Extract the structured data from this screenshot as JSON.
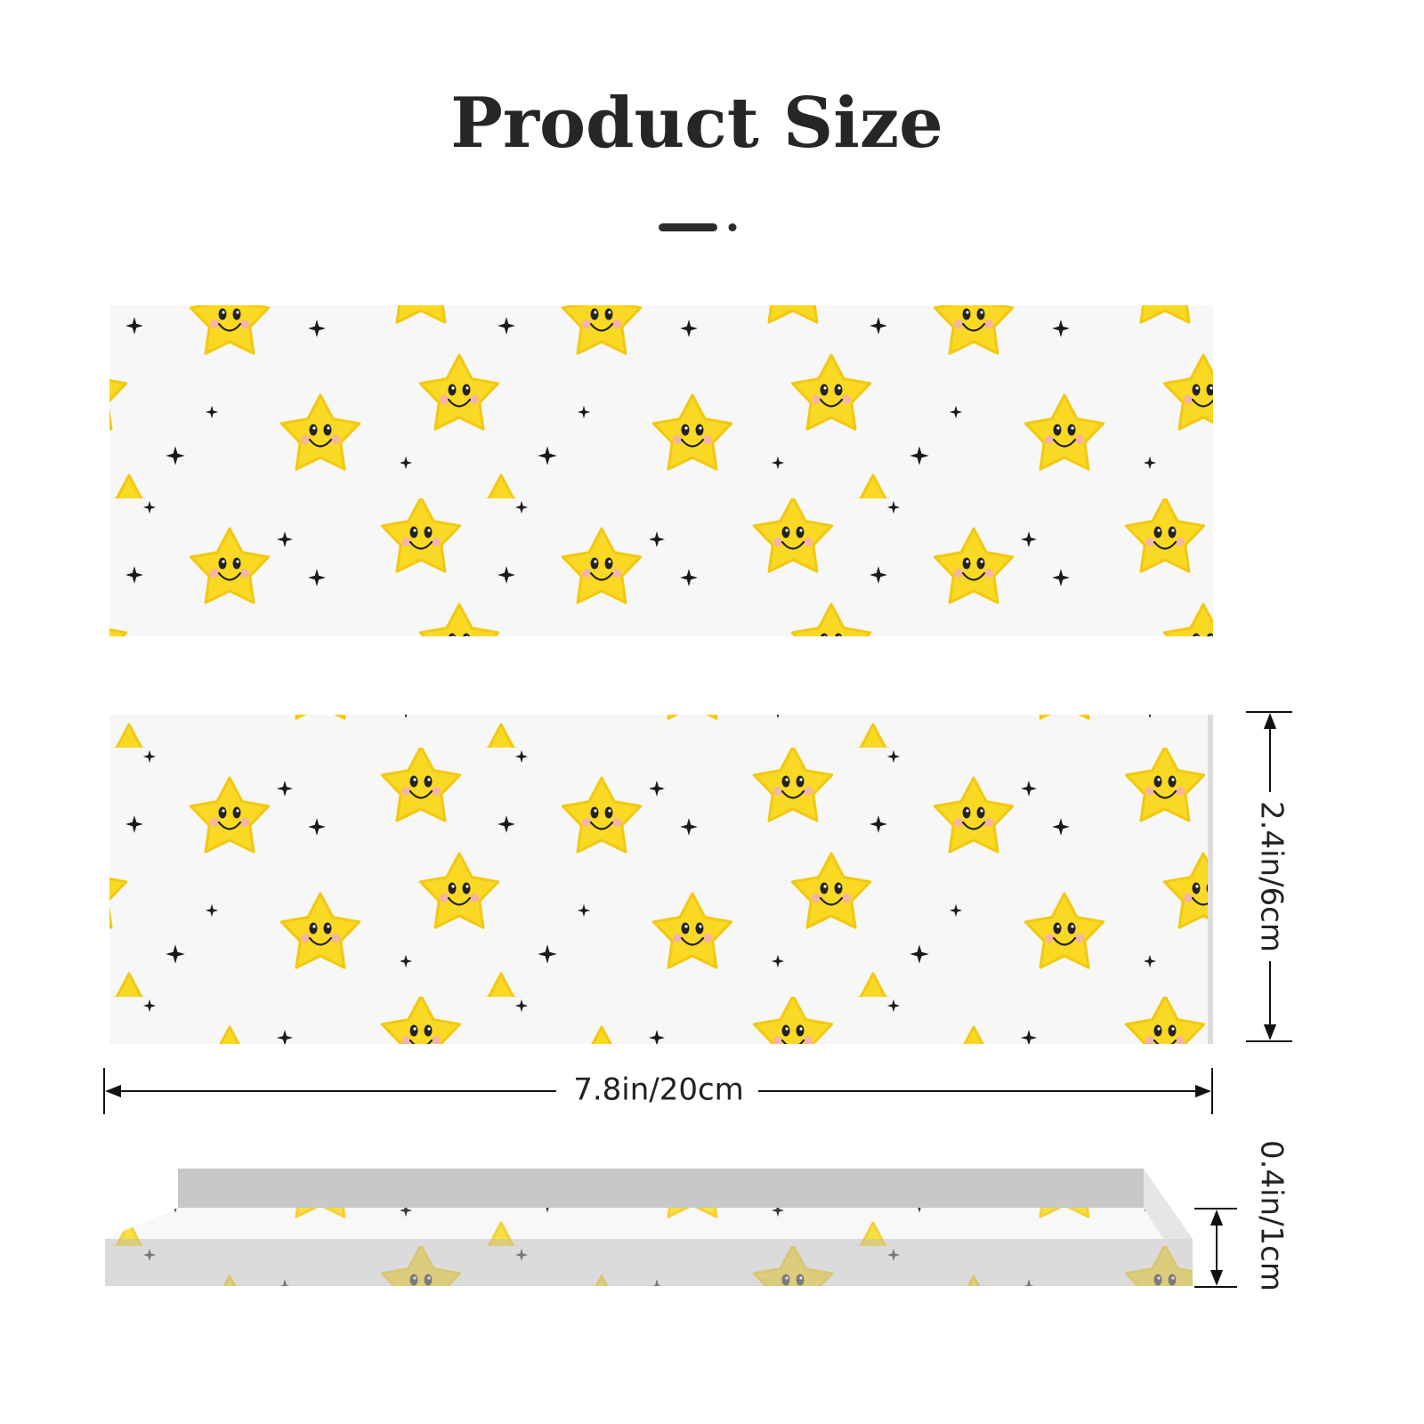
{
  "header": {
    "title": "Product Size"
  },
  "dimensions": {
    "height": "2.4in/6cm",
    "width": "7.8in/20cm",
    "thickness": "0.4in/1cm"
  }
}
